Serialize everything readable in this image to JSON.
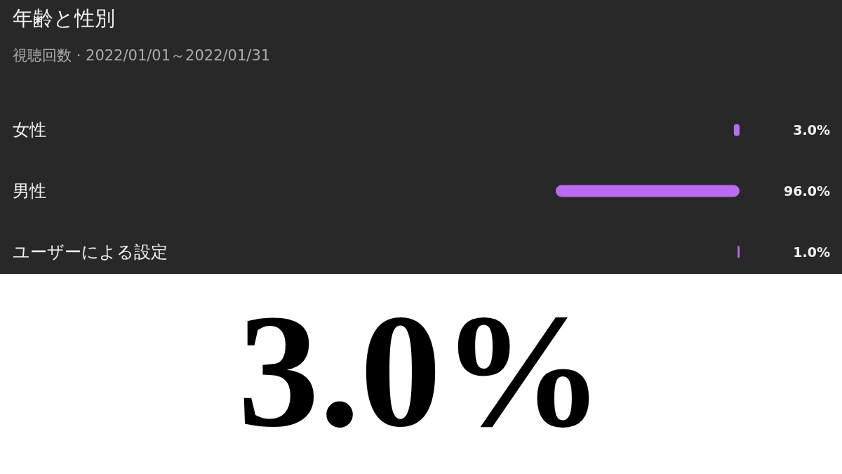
{
  "chart_data": {
    "type": "bar",
    "orientation": "horizontal",
    "title": "年齢と性別",
    "subtitle": "視聴回数 · 2022/01/01～2022/01/31",
    "categories": [
      "女性",
      "男性",
      "ユーザーによる設定"
    ],
    "values": [
      3.0,
      96.0,
      1.0
    ],
    "value_labels": [
      "3.0%",
      "96.0%",
      "1.0%"
    ],
    "color": "#bb6bf2",
    "annotations": [
      "3.0%"
    ]
  }
}
